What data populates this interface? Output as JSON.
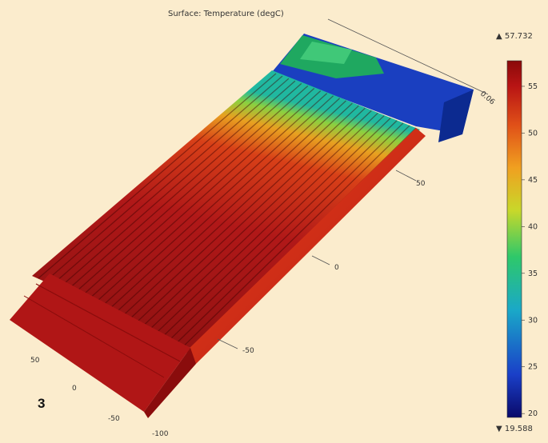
{
  "title": "Surface: Temperature (degC)",
  "colorbar": {
    "max_label": "▲ 57.732",
    "min_label": "▼ 19.588",
    "max": 57.732,
    "min": 19.588,
    "ticks": [
      "55",
      "50",
      "45",
      "40",
      "35",
      "30",
      "25",
      "20"
    ],
    "colors": [
      "#0a0a6a",
      "#1a3fc8",
      "#1aa8c8",
      "#2ec86a",
      "#c8d82a",
      "#f0a020",
      "#e05018",
      "#b81414",
      "#8a0a0a"
    ]
  },
  "axes": {
    "right_ticks": [
      "50",
      "0",
      "-50"
    ],
    "left_ticks": [
      "50",
      "0",
      "-50",
      "-100"
    ],
    "top_tick": "0.06"
  },
  "figure_number": "3"
}
